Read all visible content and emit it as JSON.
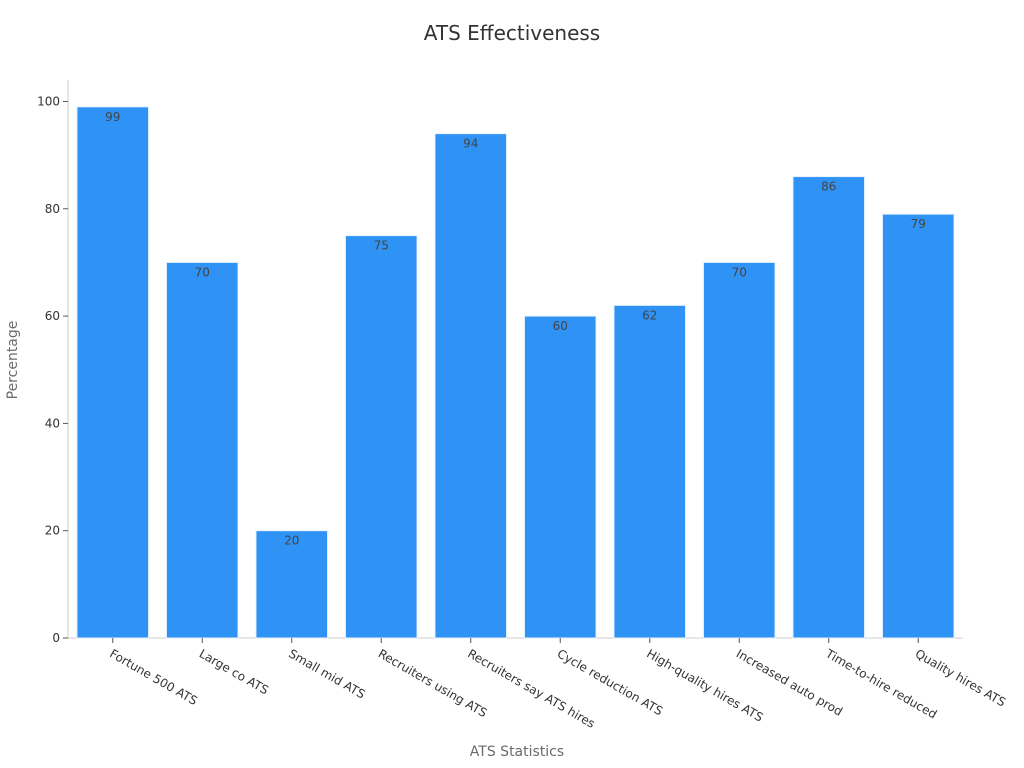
{
  "chart_data": {
    "type": "bar",
    "title": "ATS Effectiveness",
    "xlabel": "ATS Statistics",
    "ylabel": "Percentage",
    "ylim": [
      0,
      104
    ],
    "yticks": [
      0,
      20,
      40,
      60,
      80,
      100
    ],
    "grid": false,
    "bar_color": "#2f93f5",
    "categories": [
      "Fortune 500 ATS",
      "Large co ATS",
      "Small mid ATS",
      "Recruiters using ATS",
      "Recruiters say ATS hires",
      "Cycle reduction ATS",
      "High-quality hires ATS",
      "Increased auto prod",
      "Time-to-hire reduced",
      "Quality hires ATS"
    ],
    "values": [
      99,
      70,
      20,
      75,
      94,
      60,
      62,
      70,
      86,
      79
    ]
  }
}
